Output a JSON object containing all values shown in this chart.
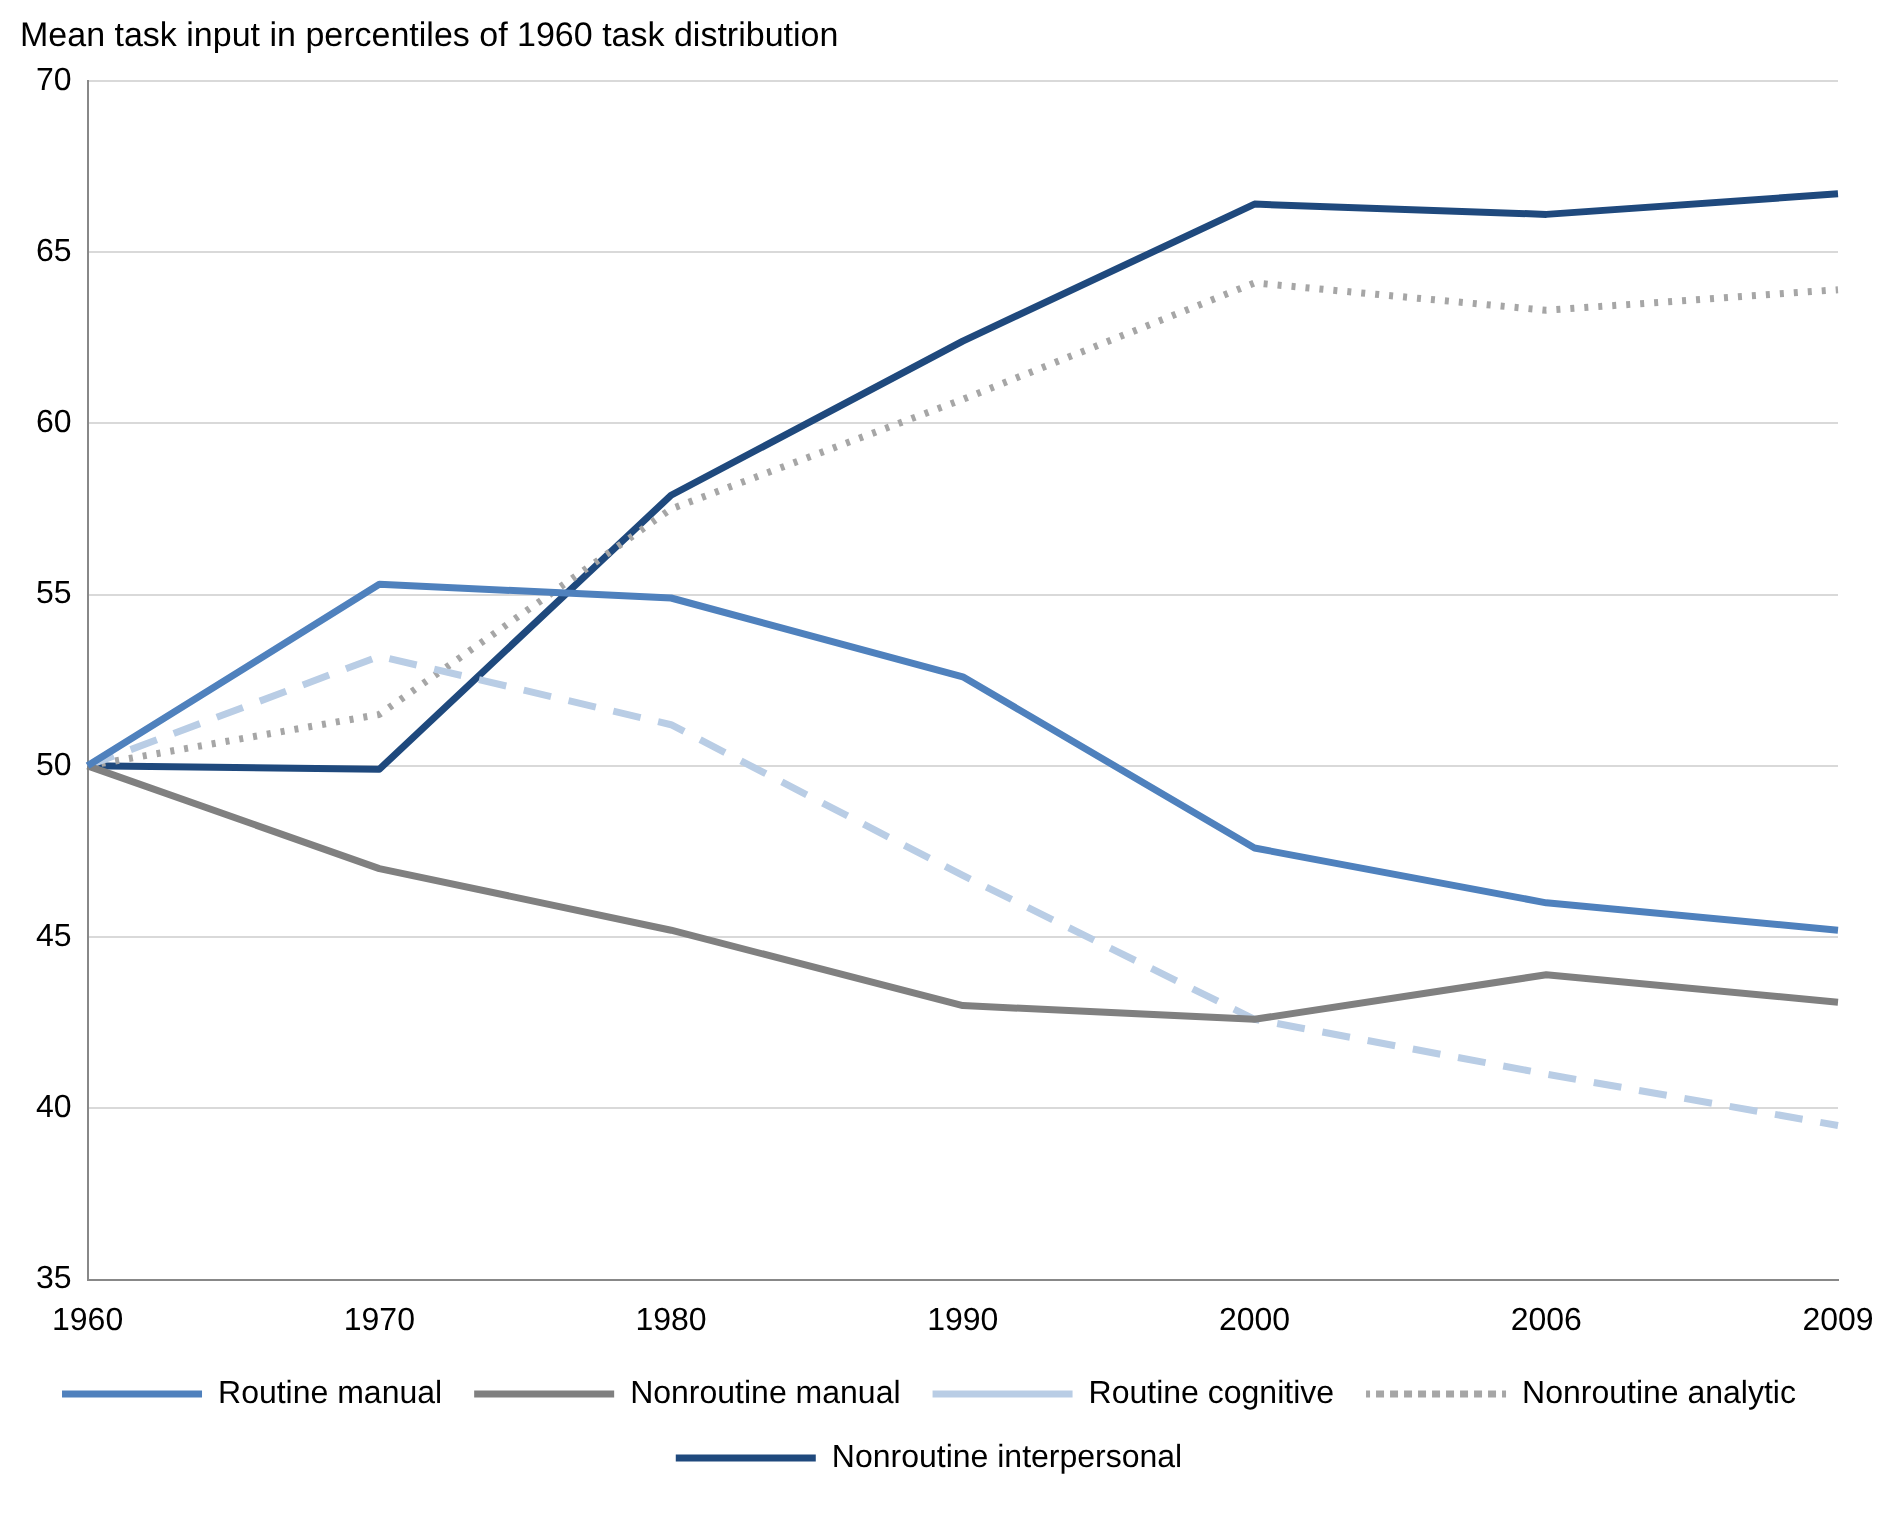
{
  "chart_data": {
    "type": "line",
    "title": "Mean task input in percentiles of 1960 task distribution",
    "categories": [
      "1960",
      "1970",
      "1980",
      "1990",
      "2000",
      "2006",
      "2009"
    ],
    "series": [
      {
        "name": "Routine manual",
        "color": "#4f81bd",
        "line_style": "solid",
        "values": [
          50,
          55.3,
          54.9,
          52.6,
          47.6,
          46.0,
          45.2
        ]
      },
      {
        "name": "Nonroutine manual",
        "color": "#808080",
        "line_style": "solid",
        "values": [
          50,
          47.0,
          45.2,
          43.0,
          42.6,
          43.9,
          43.1
        ]
      },
      {
        "name": "Routine cognitive",
        "color": "#b9cde5",
        "line_style": "dashed",
        "values": [
          50,
          53.2,
          51.2,
          46.8,
          42.6,
          41.0,
          39.5
        ]
      },
      {
        "name": "Nonroutine analytic",
        "color": "#a6a6a6",
        "line_style": "dotted",
        "values": [
          50,
          51.5,
          57.5,
          60.7,
          64.1,
          63.3,
          63.9
        ]
      },
      {
        "name": "Nonroutine interpersonal",
        "color": "#1f497d",
        "line_style": "solid",
        "values": [
          50,
          49.9,
          57.9,
          62.4,
          66.4,
          66.1,
          66.7
        ]
      }
    ],
    "ylim": [
      35,
      70
    ],
    "yticks": [
      35,
      40,
      45,
      50,
      55,
      60,
      65,
      70
    ],
    "grid": "y",
    "legend": "bottom",
    "marker": "none"
  }
}
